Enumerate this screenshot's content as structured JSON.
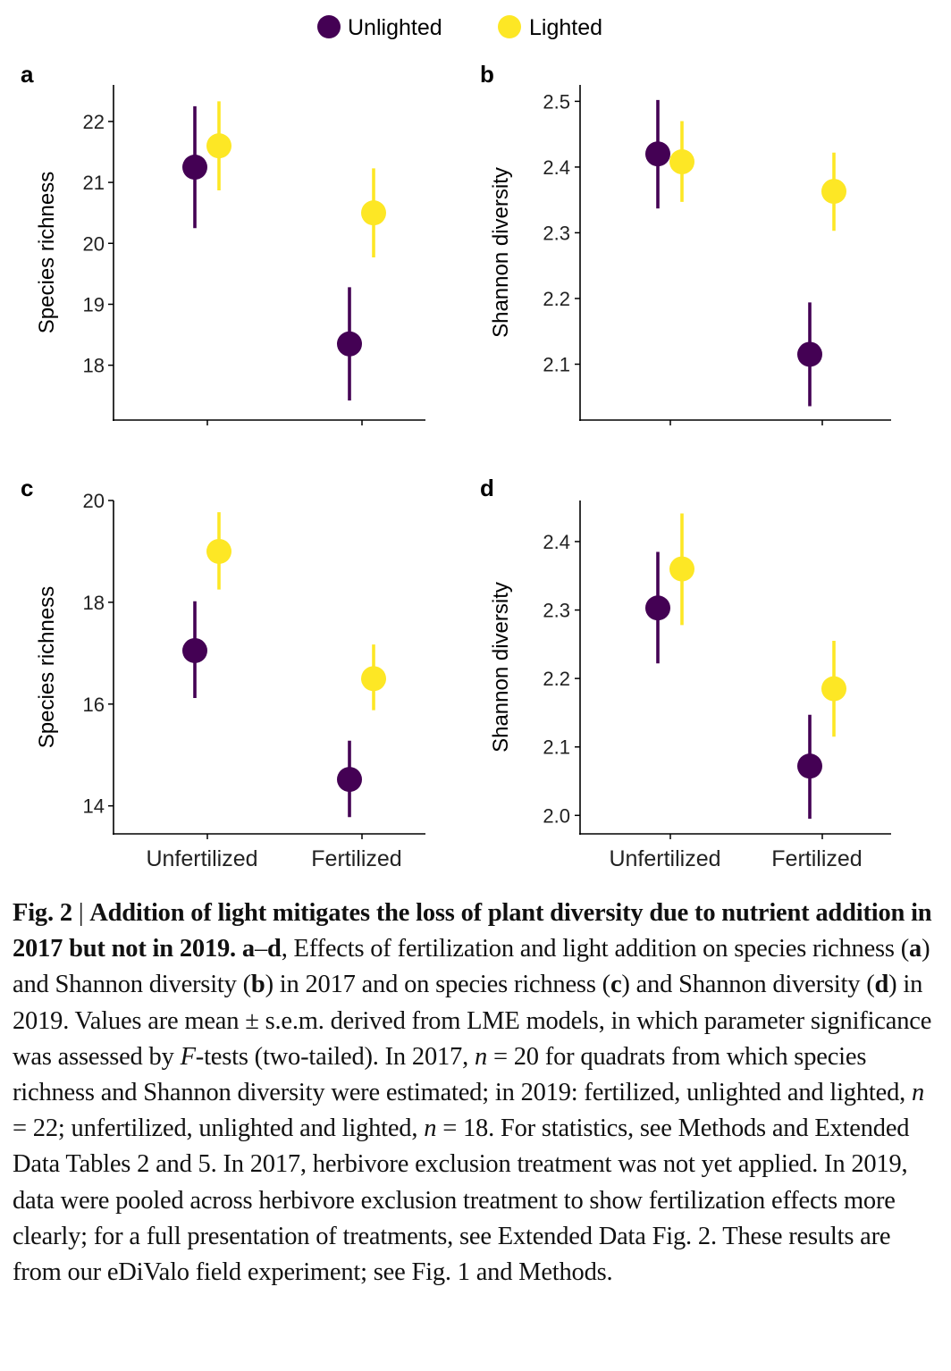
{
  "legend": [
    {
      "name": "Unlighted",
      "color": "#440154"
    },
    {
      "name": "Lighted",
      "color": "#FDE725"
    }
  ],
  "categories": [
    "Unfertilized",
    "Fertilized"
  ],
  "chart_data": [
    {
      "panel": "a",
      "type": "scatter",
      "title": "",
      "xlabel": "",
      "ylabel": "Species richness",
      "categories": [
        "Unfertilized",
        "Fertilized"
      ],
      "ylim": [
        17.1,
        22.6
      ],
      "yticks": [
        18,
        19,
        20,
        21,
        22
      ],
      "tick_labels": [
        "18",
        "19",
        "20",
        "21",
        "22"
      ],
      "series": [
        {
          "name": "Unlighted",
          "color": "#440154",
          "values": [
            21.25,
            18.35
          ],
          "lower": [
            20.25,
            17.42
          ],
          "upper": [
            22.25,
            19.28
          ]
        },
        {
          "name": "Lighted",
          "color": "#FDE725",
          "values": [
            21.6,
            20.5
          ],
          "lower": [
            20.87,
            19.77
          ],
          "upper": [
            22.33,
            21.23
          ]
        }
      ]
    },
    {
      "panel": "b",
      "type": "scatter",
      "title": "",
      "xlabel": "",
      "ylabel": "Shannon diversity",
      "categories": [
        "Unfertilized",
        "Fertilized"
      ],
      "ylim": [
        2.015,
        2.525
      ],
      "yticks": [
        2.1,
        2.2,
        2.3,
        2.4,
        2.5
      ],
      "tick_labels": [
        "2.1",
        "2.2",
        "2.3",
        "2.4",
        "2.5"
      ],
      "series": [
        {
          "name": "Unlighted",
          "color": "#440154",
          "values": [
            2.42,
            2.115
          ],
          "lower": [
            2.337,
            2.036
          ],
          "upper": [
            2.502,
            2.194
          ]
        },
        {
          "name": "Lighted",
          "color": "#FDE725",
          "values": [
            2.408,
            2.363
          ],
          "lower": [
            2.347,
            2.303
          ],
          "upper": [
            2.47,
            2.422
          ]
        }
      ]
    },
    {
      "panel": "c",
      "type": "scatter",
      "title": "",
      "xlabel": "",
      "ylabel": "Species richness",
      "categories": [
        "Unfertilized",
        "Fertilized"
      ],
      "ylim": [
        13.45,
        20.0
      ],
      "yticks": [
        14,
        16,
        18,
        20
      ],
      "tick_labels": [
        "14",
        "16",
        "18",
        "20"
      ],
      "series": [
        {
          "name": "Unlighted",
          "color": "#440154",
          "values": [
            17.05,
            14.52
          ],
          "lower": [
            16.12,
            13.78
          ],
          "upper": [
            18.02,
            15.28
          ]
        },
        {
          "name": "Lighted",
          "color": "#FDE725",
          "values": [
            19.0,
            16.5
          ],
          "lower": [
            18.25,
            15.88
          ],
          "upper": [
            19.77,
            17.17
          ]
        }
      ]
    },
    {
      "panel": "d",
      "type": "scatter",
      "title": "",
      "xlabel": "",
      "ylabel": "Shannon diversity",
      "categories": [
        "Unfertilized",
        "Fertilized"
      ],
      "ylim": [
        1.973,
        2.46
      ],
      "yticks": [
        2.0,
        2.1,
        2.2,
        2.3,
        2.4
      ],
      "tick_labels": [
        "2.0",
        "2.1",
        "2.2",
        "2.3",
        "2.4"
      ],
      "series": [
        {
          "name": "Unlighted",
          "color": "#440154",
          "values": [
            2.303,
            2.072
          ],
          "lower": [
            2.222,
            1.995
          ],
          "upper": [
            2.385,
            2.147
          ]
        },
        {
          "name": "Lighted",
          "color": "#FDE725",
          "values": [
            2.36,
            2.185
          ],
          "lower": [
            2.278,
            2.115
          ],
          "upper": [
            2.441,
            2.255
          ]
        }
      ]
    }
  ],
  "caption": {
    "fig_label": "Fig. 2",
    "separator": " | ",
    "title": "Addition of light mitigates the loss of plant diversity due to nutrient addition in 2017 but not in 2019.",
    "segments": [
      {
        "text": " ",
        "style": "normal"
      },
      {
        "text": "a",
        "style": "bold"
      },
      {
        "text": "–",
        "style": "normal"
      },
      {
        "text": "d",
        "style": "bold"
      },
      {
        "text": ", Effects of fertilization and light addition on species richness (",
        "style": "normal"
      },
      {
        "text": "a",
        "style": "bold"
      },
      {
        "text": ") and Shannon diversity (",
        "style": "normal"
      },
      {
        "text": "b",
        "style": "bold"
      },
      {
        "text": ") in 2017 and on species richness (",
        "style": "normal"
      },
      {
        "text": "c",
        "style": "bold"
      },
      {
        "text": ") and Shannon diversity (",
        "style": "normal"
      },
      {
        "text": "d",
        "style": "bold"
      },
      {
        "text": ") in 2019. Values are mean ± s.e.m. derived from LME models, in which parameter significance was assessed by ",
        "style": "normal"
      },
      {
        "text": "F",
        "style": "italic"
      },
      {
        "text": "-tests (two-tailed). In 2017, ",
        "style": "normal"
      },
      {
        "text": "n",
        "style": "italic"
      },
      {
        "text": " = 20 for quadrats from which species richness and Shannon diversity were estimated; in 2019: fertilized, unlighted and lighted, ",
        "style": "normal"
      },
      {
        "text": "n",
        "style": "italic"
      },
      {
        "text": " = 22; unfertilized, unlighted and lighted, ",
        "style": "normal"
      },
      {
        "text": "n",
        "style": "italic"
      },
      {
        "text": " = 18. For statistics, see Methods and Extended Data Tables 2 and 5. In 2017, herbivore exclusion treatment was not yet applied. In 2019, data were pooled across herbivore exclusion treatment to show fertilization effects more clearly; for a full presentation of treatments, see Extended Data Fig. 2. These results are from our eDiValo field experiment; see Fig. 1 and Methods.",
        "style": "normal"
      }
    ]
  }
}
